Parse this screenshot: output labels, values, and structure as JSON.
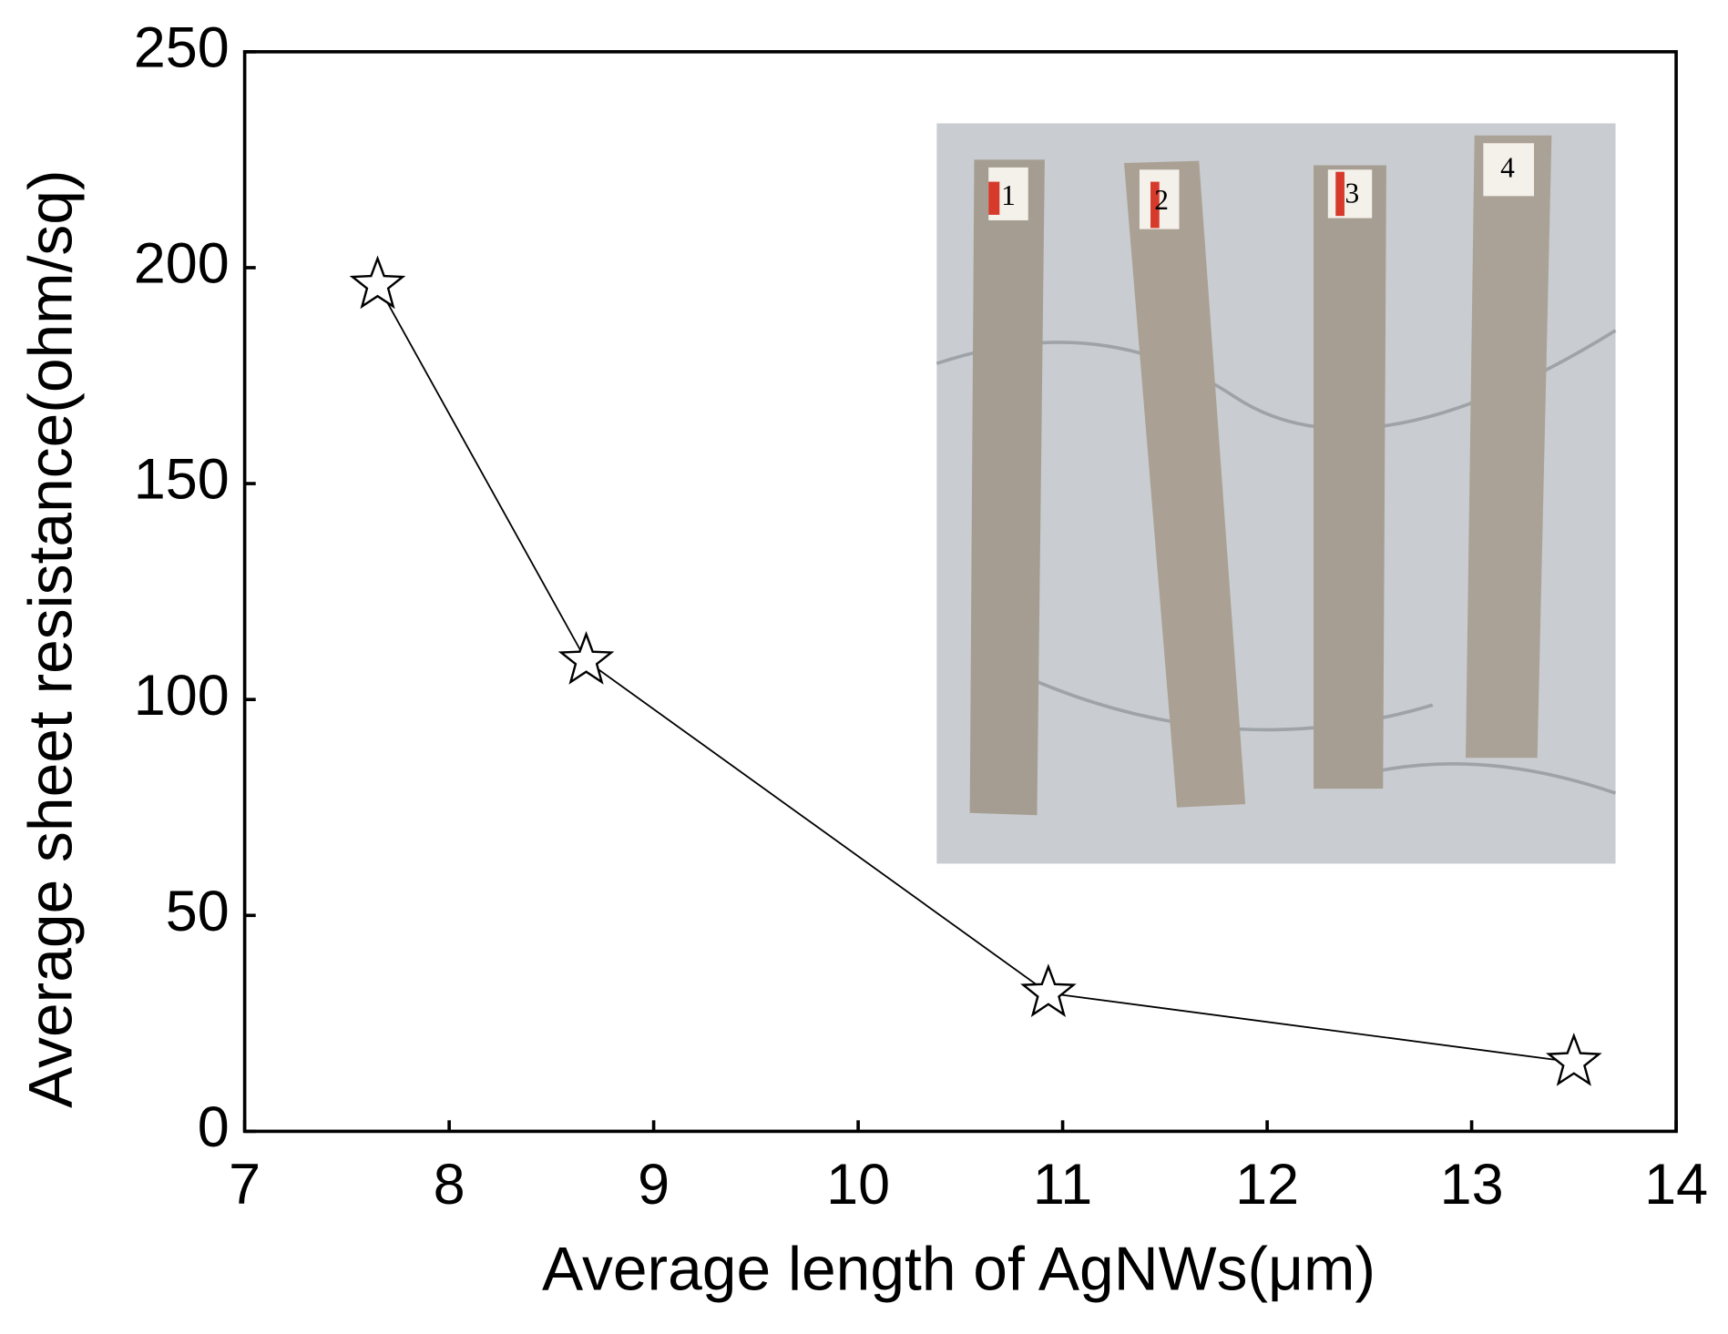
{
  "chart_data": {
    "type": "line",
    "x_label": "Average length of AgNWs(μm)",
    "y_label": "Average sheet resistance(ohm/sq)",
    "x": [
      7.65,
      8.67,
      10.93,
      13.5
    ],
    "series": [
      {
        "color": "#000000",
        "values": [
          196,
          109,
          32,
          16
        ]
      }
    ],
    "xlim": [
      7,
      14
    ],
    "xticks": [
      7,
      8,
      9,
      10,
      11,
      12,
      13,
      14
    ],
    "ylim": [
      0,
      250
    ],
    "yticks": [
      0,
      50,
      100,
      150,
      200,
      250
    ],
    "marker": "star"
  },
  "inset": {
    "labels": [
      "1",
      "2",
      "3",
      "4"
    ]
  }
}
